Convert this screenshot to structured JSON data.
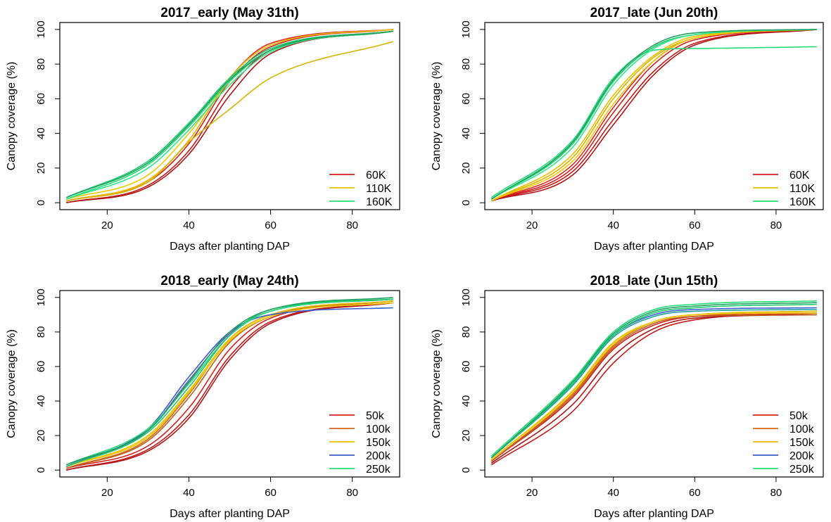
{
  "chart_data": [
    {
      "type": "line",
      "title": "2017_early (May 31th)",
      "xlabel": "Days after planting DAP",
      "ylabel": "Canopy coverage (%)",
      "xlim": [
        10,
        90
      ],
      "ylim": [
        0,
        100
      ],
      "xticks": [
        20,
        40,
        60,
        80
      ],
      "yticks": [
        0,
        20,
        40,
        60,
        80,
        100
      ],
      "grid": false,
      "legend_position": "bottom-right",
      "legend": [
        {
          "label": "60K",
          "color": "#d42020"
        },
        {
          "label": "110K",
          "color": "#e6c000"
        },
        {
          "label": "160K",
          "color": "#22dd77"
        }
      ],
      "series": [
        {
          "group": "60K",
          "color": "#c41a1a",
          "x": [
            10,
            30,
            40,
            50,
            60,
            90
          ],
          "y": [
            0,
            10,
            30,
            66,
            88,
            99
          ]
        },
        {
          "group": "60K",
          "color": "#d42020",
          "x": [
            10,
            30,
            40,
            50,
            60,
            90
          ],
          "y": [
            1,
            12,
            34,
            70,
            90,
            100
          ]
        },
        {
          "group": "60K",
          "color": "#b01515",
          "x": [
            10,
            30,
            40,
            50,
            60,
            90
          ],
          "y": [
            0,
            9,
            28,
            62,
            86,
            99
          ]
        },
        {
          "group": "60K",
          "color": "#e02828",
          "x": [
            10,
            30,
            40,
            50,
            60,
            90
          ],
          "y": [
            1,
            13,
            36,
            72,
            92,
            100
          ]
        },
        {
          "group": "110K",
          "color": "#e6c000",
          "x": [
            10,
            30,
            40,
            50,
            60,
            90
          ],
          "y": [
            1,
            13,
            36,
            72,
            91,
            100
          ]
        },
        {
          "group": "110K",
          "color": "#d8b400",
          "x": [
            10,
            30,
            40,
            50,
            60,
            90
          ],
          "y": [
            1,
            12,
            35,
            54,
            72,
            93
          ]
        },
        {
          "group": "110K",
          "color": "#f0c800",
          "x": [
            10,
            30,
            40,
            50,
            60,
            90
          ],
          "y": [
            2,
            16,
            40,
            70,
            88,
            99
          ]
        },
        {
          "group": "160K",
          "color": "#22dd77",
          "x": [
            10,
            30,
            40,
            50,
            60,
            90
          ],
          "y": [
            2,
            22,
            44,
            70,
            88,
            99
          ]
        },
        {
          "group": "160K",
          "color": "#1cc96b",
          "x": [
            10,
            30,
            40,
            50,
            60,
            90
          ],
          "y": [
            3,
            24,
            46,
            72,
            89,
            99
          ]
        },
        {
          "group": "160K",
          "color": "#2ee88a",
          "x": [
            10,
            30,
            40,
            50,
            60,
            90
          ],
          "y": [
            2,
            20,
            42,
            68,
            87,
            99
          ]
        },
        {
          "group": "160K",
          "color": "#20a060",
          "x": [
            10,
            30,
            40,
            50,
            60,
            90
          ],
          "y": [
            3,
            23,
            45,
            71,
            88,
            99
          ]
        }
      ]
    },
    {
      "type": "line",
      "title": "2017_late (Jun 20th)",
      "xlabel": "Days after planting DAP",
      "ylabel": "Canopy coverage (%)",
      "xlim": [
        10,
        90
      ],
      "ylim": [
        0,
        100
      ],
      "xticks": [
        20,
        40,
        60,
        80
      ],
      "yticks": [
        0,
        20,
        40,
        60,
        80,
        100
      ],
      "grid": false,
      "legend_position": "bottom-right",
      "legend": [
        {
          "label": "60K",
          "color": "#d42020"
        },
        {
          "label": "110K",
          "color": "#e6c000"
        },
        {
          "label": "160K",
          "color": "#22dd77"
        }
      ],
      "series": [
        {
          "group": "60K",
          "color": "#c41a1a",
          "x": [
            10,
            30,
            40,
            50,
            60,
            90
          ],
          "y": [
            1,
            18,
            48,
            76,
            92,
            100
          ]
        },
        {
          "group": "60K",
          "color": "#d42020",
          "x": [
            10,
            30,
            40,
            50,
            60,
            90
          ],
          "y": [
            1,
            20,
            52,
            80,
            94,
            100
          ]
        },
        {
          "group": "60K",
          "color": "#b01515",
          "x": [
            10,
            30,
            40,
            50,
            60,
            90
          ],
          "y": [
            1,
            16,
            45,
            74,
            91,
            100
          ]
        },
        {
          "group": "60K",
          "color": "#e02828",
          "x": [
            10,
            30,
            40,
            50,
            60,
            90
          ],
          "y": [
            1,
            22,
            55,
            82,
            95,
            100
          ]
        },
        {
          "group": "110K",
          "color": "#e6c000",
          "x": [
            10,
            30,
            40,
            50,
            60,
            90
          ],
          "y": [
            1,
            28,
            62,
            85,
            96,
            100
          ]
        },
        {
          "group": "110K",
          "color": "#d8b400",
          "x": [
            10,
            30,
            40,
            50,
            60,
            90
          ],
          "y": [
            1,
            26,
            60,
            84,
            95,
            100
          ]
        },
        {
          "group": "110K",
          "color": "#f0c800",
          "x": [
            10,
            30,
            40,
            50,
            60,
            90
          ],
          "y": [
            1,
            24,
            57,
            82,
            95,
            100
          ]
        },
        {
          "group": "160K",
          "color": "#22dd77",
          "x": [
            10,
            30,
            40,
            50,
            60,
            90
          ],
          "y": [
            3,
            36,
            72,
            88,
            89,
            90
          ]
        },
        {
          "group": "160K",
          "color": "#1cc96b",
          "x": [
            10,
            30,
            40,
            50,
            60,
            90
          ],
          "y": [
            2,
            34,
            70,
            90,
            97,
            100
          ]
        },
        {
          "group": "160K",
          "color": "#2ee88a",
          "x": [
            10,
            30,
            40,
            50,
            60,
            90
          ],
          "y": [
            2,
            32,
            68,
            89,
            97,
            100
          ]
        },
        {
          "group": "160K",
          "color": "#20a060",
          "x": [
            10,
            30,
            40,
            50,
            60,
            90
          ],
          "y": [
            2,
            35,
            71,
            91,
            98,
            100
          ]
        }
      ]
    },
    {
      "type": "line",
      "title": "2018_early (May 24th)",
      "xlabel": "Days after planting DAP",
      "ylabel": "Canopy coverage (%)",
      "xlim": [
        10,
        90
      ],
      "ylim": [
        0,
        100
      ],
      "xticks": [
        20,
        40,
        60,
        80
      ],
      "yticks": [
        0,
        20,
        40,
        60,
        80,
        100
      ],
      "grid": false,
      "legend_position": "bottom-right",
      "legend": [
        {
          "label": "50k",
          "color": "#d42020"
        },
        {
          "label": "100k",
          "color": "#d2691e"
        },
        {
          "label": "150k",
          "color": "#e6c000"
        },
        {
          "label": "200k",
          "color": "#3a5fcd"
        },
        {
          "label": "250k",
          "color": "#22dd77"
        }
      ],
      "series": [
        {
          "group": "50k",
          "color": "#c41a1a",
          "x": [
            10,
            30,
            40,
            50,
            60,
            90
          ],
          "y": [
            0,
            12,
            32,
            66,
            86,
            97
          ]
        },
        {
          "group": "50k",
          "color": "#d42020",
          "x": [
            10,
            30,
            40,
            50,
            60,
            90
          ],
          "y": [
            1,
            14,
            36,
            70,
            88,
            98
          ]
        },
        {
          "group": "50k",
          "color": "#b01515",
          "x": [
            10,
            30,
            40,
            50,
            60,
            90
          ],
          "y": [
            0,
            11,
            30,
            64,
            85,
            97
          ]
        },
        {
          "group": "100k",
          "color": "#d2691e",
          "x": [
            10,
            30,
            40,
            50,
            60,
            90
          ],
          "y": [
            1,
            18,
            44,
            76,
            90,
            98
          ]
        },
        {
          "group": "100k",
          "color": "#c0601a",
          "x": [
            10,
            30,
            40,
            50,
            60,
            90
          ],
          "y": [
            1,
            17,
            42,
            74,
            89,
            98
          ]
        },
        {
          "group": "150k",
          "color": "#e6c000",
          "x": [
            10,
            30,
            40,
            50,
            60,
            90
          ],
          "y": [
            2,
            20,
            46,
            76,
            90,
            98
          ]
        },
        {
          "group": "150k",
          "color": "#f0c800",
          "x": [
            10,
            30,
            40,
            50,
            60,
            90
          ],
          "y": [
            2,
            19,
            45,
            75,
            89,
            97
          ]
        },
        {
          "group": "200k",
          "color": "#3a5fcd",
          "x": [
            10,
            30,
            40,
            50,
            60,
            90
          ],
          "y": [
            2,
            24,
            54,
            80,
            90,
            94
          ]
        },
        {
          "group": "200k",
          "color": "#6a5acd",
          "x": [
            10,
            30,
            40,
            50,
            60,
            90
          ],
          "y": [
            2,
            23,
            52,
            79,
            92,
            99
          ]
        },
        {
          "group": "250k",
          "color": "#22dd77",
          "x": [
            10,
            30,
            40,
            50,
            60,
            90
          ],
          "y": [
            3,
            24,
            50,
            78,
            92,
            99
          ]
        },
        {
          "group": "250k",
          "color": "#1cc96b",
          "x": [
            10,
            30,
            40,
            50,
            60,
            90
          ],
          "y": [
            2,
            22,
            48,
            78,
            93,
            99
          ]
        },
        {
          "group": "250k",
          "color": "#20a060",
          "x": [
            10,
            30,
            40,
            50,
            60,
            90
          ],
          "y": [
            3,
            23,
            51,
            80,
            93,
            100
          ]
        }
      ]
    },
    {
      "type": "line",
      "title": "2018_late (Jun 15th)",
      "xlabel": "Days after planting DAP",
      "ylabel": "Canopy coverage (%)",
      "xlim": [
        10,
        90
      ],
      "ylim": [
        0,
        100
      ],
      "xticks": [
        20,
        40,
        60,
        80
      ],
      "yticks": [
        0,
        20,
        40,
        60,
        80,
        100
      ],
      "grid": false,
      "legend_position": "bottom-right",
      "legend": [
        {
          "label": "50k",
          "color": "#d42020"
        },
        {
          "label": "100k",
          "color": "#d2691e"
        },
        {
          "label": "150k",
          "color": "#e6c000"
        },
        {
          "label": "200k",
          "color": "#3a5fcd"
        },
        {
          "label": "250k",
          "color": "#22dd77"
        }
      ],
      "series": [
        {
          "group": "50k",
          "color": "#c41a1a",
          "x": [
            10,
            30,
            40,
            50,
            60,
            90
          ],
          "y": [
            3,
            34,
            62,
            80,
            87,
            91
          ]
        },
        {
          "group": "50k",
          "color": "#d42020",
          "x": [
            10,
            30,
            40,
            50,
            60,
            90
          ],
          "y": [
            5,
            42,
            70,
            84,
            89,
            91
          ]
        },
        {
          "group": "50k",
          "color": "#b01515",
          "x": [
            10,
            30,
            40,
            50,
            60,
            90
          ],
          "y": [
            4,
            38,
            66,
            82,
            88,
            90
          ]
        },
        {
          "group": "100k",
          "color": "#d2691e",
          "x": [
            10,
            30,
            40,
            50,
            60,
            90
          ],
          "y": [
            5,
            44,
            72,
            86,
            90,
            92
          ]
        },
        {
          "group": "100k",
          "color": "#c0601a",
          "x": [
            10,
            30,
            40,
            50,
            60,
            90
          ],
          "y": [
            5,
            43,
            71,
            85,
            89,
            90
          ]
        },
        {
          "group": "150k",
          "color": "#e6c000",
          "x": [
            10,
            30,
            40,
            50,
            60,
            90
          ],
          "y": [
            6,
            46,
            74,
            86,
            90,
            92
          ]
        },
        {
          "group": "150k",
          "color": "#f0c800",
          "x": [
            10,
            30,
            40,
            50,
            60,
            90
          ],
          "y": [
            6,
            45,
            73,
            86,
            90,
            91
          ]
        },
        {
          "group": "200k",
          "color": "#3a5fcd",
          "x": [
            10,
            30,
            40,
            50,
            60,
            90
          ],
          "y": [
            7,
            50,
            78,
            90,
            93,
            94
          ]
        },
        {
          "group": "200k",
          "color": "#20a0a0",
          "x": [
            10,
            30,
            40,
            50,
            60,
            90
          ],
          "y": [
            7,
            49,
            77,
            89,
            92,
            93
          ]
        },
        {
          "group": "250k",
          "color": "#22dd77",
          "x": [
            10,
            30,
            40,
            50,
            60,
            90
          ],
          "y": [
            8,
            52,
            80,
            93,
            96,
            98
          ]
        },
        {
          "group": "250k",
          "color": "#1cc96b",
          "x": [
            10,
            30,
            40,
            50,
            60,
            90
          ],
          "y": [
            7,
            50,
            78,
            91,
            94,
            96
          ]
        },
        {
          "group": "250k",
          "color": "#20a060",
          "x": [
            10,
            30,
            40,
            50,
            60,
            90
          ],
          "y": [
            7,
            51,
            79,
            92,
            95,
            97
          ]
        }
      ]
    }
  ]
}
